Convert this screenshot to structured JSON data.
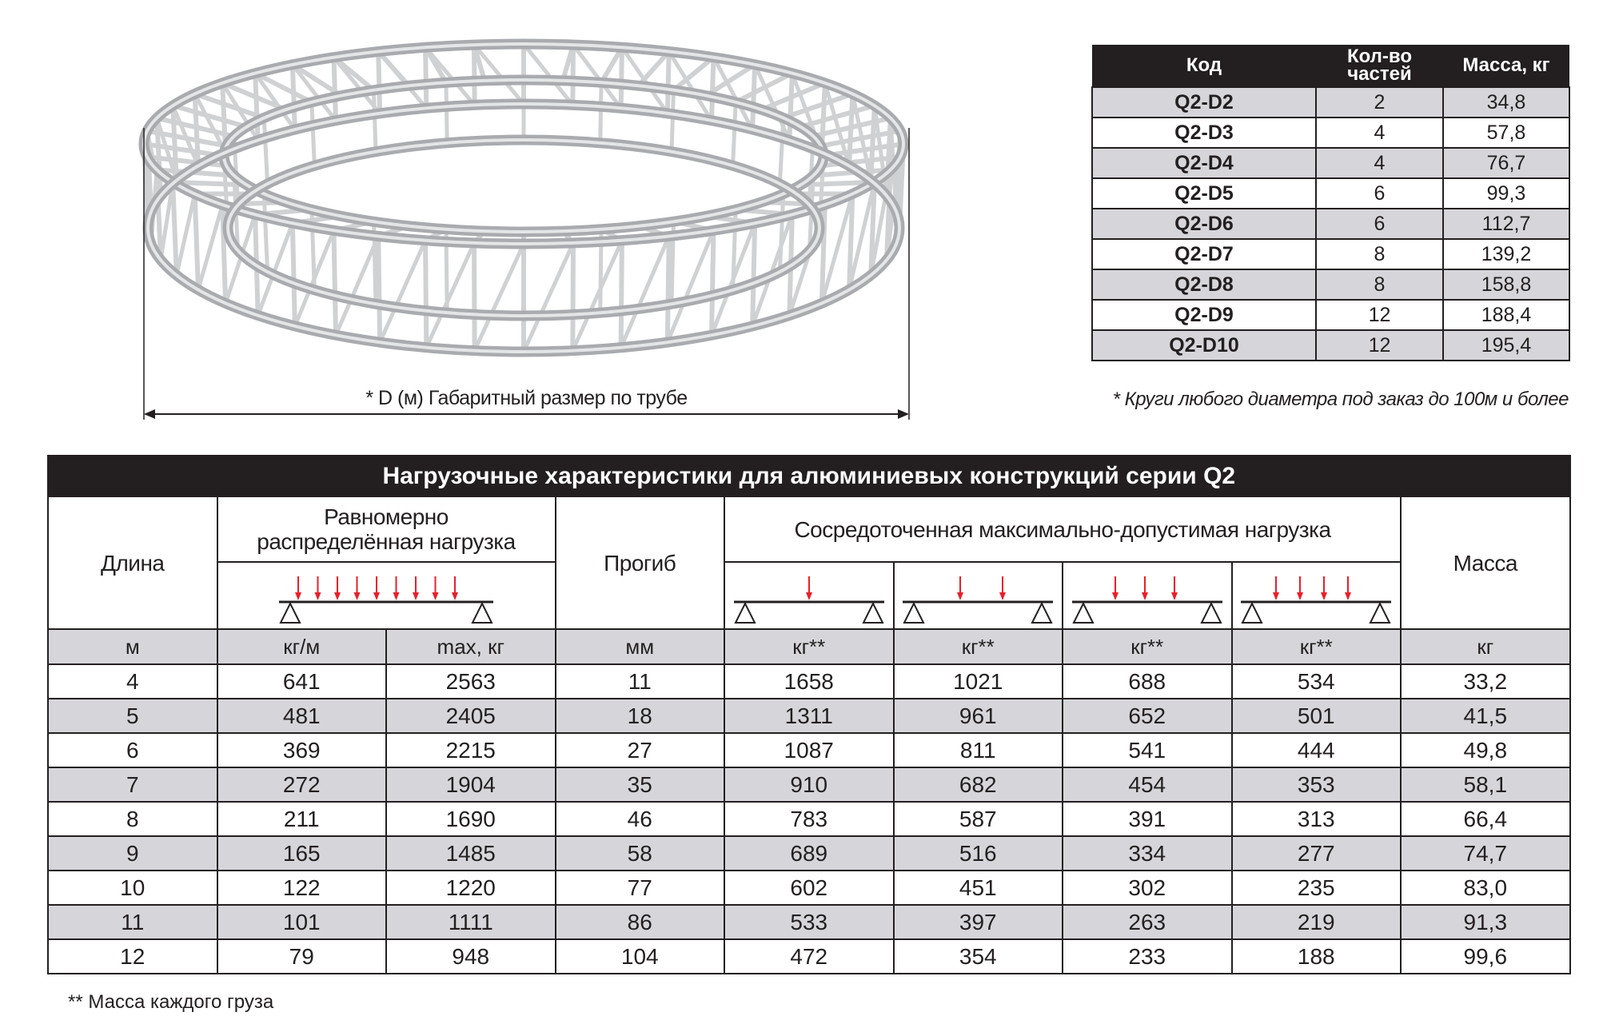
{
  "figure": {
    "dimension_label": "* D (м)  Габаритный размер по трубе"
  },
  "codes_table": {
    "headers": [
      "Код",
      "Кол-во частей",
      "Масса, кг"
    ],
    "rows": [
      [
        "Q2-D2",
        "2",
        "34,8"
      ],
      [
        "Q2-D3",
        "4",
        "57,8"
      ],
      [
        "Q2-D4",
        "4",
        "76,7"
      ],
      [
        "Q2-D5",
        "6",
        "99,3"
      ],
      [
        "Q2-D6",
        "6",
        "112,7"
      ],
      [
        "Q2-D7",
        "8",
        "139,2"
      ],
      [
        "Q2-D8",
        "8",
        "158,8"
      ],
      [
        "Q2-D9",
        "12",
        "188,4"
      ],
      [
        "Q2-D10",
        "12",
        "195,4"
      ]
    ],
    "note": "* Круги любого диаметра под заказ до 100м и более"
  },
  "load_table": {
    "title": "Нагрузочные характеристики для алюминиевых конструкций серии Q2",
    "headers": {
      "length": "Длина",
      "uniform": "Равномерно распределённая нагрузка",
      "deflection": "Прогиб",
      "concentrated": "Сосредоточенная максимально-допустимая нагрузка",
      "mass": "Масса"
    },
    "diagram_arrow_counts": [
      9,
      1,
      2,
      3,
      4
    ],
    "arrow_color": "#e8202a",
    "units": [
      "м",
      "кг/м",
      "max, кг",
      "мм",
      "кг**",
      "кг**",
      "кг**",
      "кг**",
      "кг"
    ],
    "rows": [
      [
        "4",
        "641",
        "2563",
        "11",
        "1658",
        "1021",
        "688",
        "534",
        "33,2"
      ],
      [
        "5",
        "481",
        "2405",
        "18",
        "1311",
        "961",
        "652",
        "501",
        "41,5"
      ],
      [
        "6",
        "369",
        "2215",
        "27",
        "1087",
        "811",
        "541",
        "444",
        "49,8"
      ],
      [
        "7",
        "272",
        "1904",
        "35",
        "910",
        "682",
        "454",
        "353",
        "58,1"
      ],
      [
        "8",
        "211",
        "1690",
        "46",
        "783",
        "587",
        "391",
        "313",
        "66,4"
      ],
      [
        "9",
        "165",
        "1485",
        "58",
        "689",
        "516",
        "334",
        "277",
        "74,7"
      ],
      [
        "10",
        "122",
        "1220",
        "77",
        "602",
        "451",
        "302",
        "235",
        "83,0"
      ],
      [
        "11",
        "101",
        "1111",
        "86",
        "533",
        "397",
        "263",
        "219",
        "91,3"
      ],
      [
        "12",
        "79",
        "948",
        "104",
        "472",
        "354",
        "233",
        "188",
        "99,6"
      ]
    ],
    "footnote": "** Масса каждого груза"
  }
}
